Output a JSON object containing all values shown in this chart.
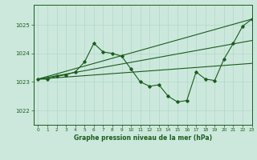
{
  "title": "Graphe pression niveau de la mer (hPa)",
  "bg_color": "#cce8dd",
  "grid_color": "#b0d8c8",
  "line_color": "#1a5c1a",
  "xlim": [
    -0.5,
    23
  ],
  "ylim": [
    1021.5,
    1025.7
  ],
  "yticks": [
    1022,
    1023,
    1024,
    1025
  ],
  "xticks": [
    0,
    1,
    2,
    3,
    4,
    5,
    6,
    7,
    8,
    9,
    10,
    11,
    12,
    13,
    14,
    15,
    16,
    17,
    18,
    19,
    20,
    21,
    22,
    23
  ],
  "series1": [
    1023.1,
    1023.1,
    1023.2,
    1023.25,
    1023.35,
    1023.7,
    1024.35,
    1024.05,
    1024.0,
    1023.9,
    1023.45,
    1023.0,
    1022.85,
    1022.9,
    1022.5,
    1022.3,
    1022.35,
    1023.35,
    1023.1,
    1023.05,
    1023.8,
    1024.35,
    1024.95,
    1025.2
  ],
  "line1_straight": [
    [
      0,
      1023.1
    ],
    [
      23,
      1025.2
    ]
  ],
  "line2_straight": [
    [
      0,
      1023.1
    ],
    [
      23,
      1024.45
    ]
  ],
  "line3_straight": [
    [
      0,
      1023.1
    ],
    [
      23,
      1023.65
    ]
  ]
}
